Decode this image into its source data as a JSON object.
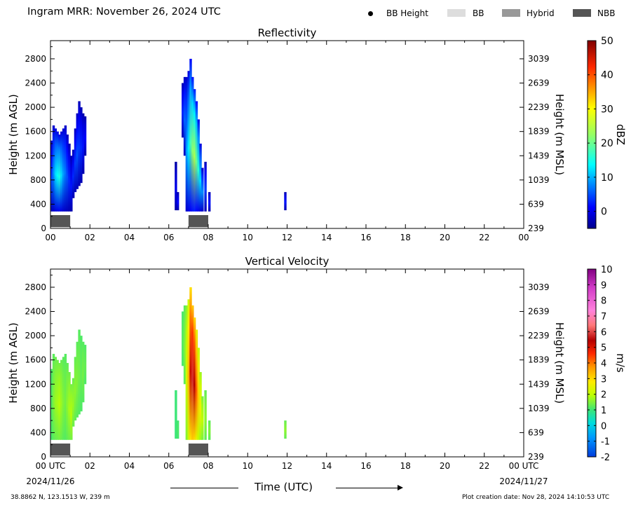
{
  "header": {
    "title": "Ingram MRR:  November 26, 2024 UTC",
    "legend": [
      {
        "label": "BB Height",
        "kind": "dot",
        "color": "#000000"
      },
      {
        "label": "BB",
        "kind": "box",
        "color": "#dddddd"
      },
      {
        "label": "Hybrid",
        "kind": "box",
        "color": "#999999"
      },
      {
        "label": "NBB",
        "kind": "box",
        "color": "#555555"
      }
    ]
  },
  "footer": {
    "location": "38.8862 N, 123.1513 W, 239 m",
    "creation": "Plot creation date: Nov 28, 2024 14:10:53 UTC",
    "xlabel": "Time (UTC)"
  },
  "chart_data": [
    {
      "type": "heatmap",
      "title": "Reflectivity",
      "ylabel": "Height (m AGL)",
      "y2label": "Height (m MSL)",
      "x_ticks": [
        "00",
        "02",
        "04",
        "06",
        "08",
        "10",
        "12",
        "14",
        "16",
        "18",
        "20",
        "22",
        "00"
      ],
      "y_ticks": [
        0,
        400,
        800,
        1200,
        1600,
        2000,
        2400,
        2800
      ],
      "y2_ticks": [
        239,
        639,
        1039,
        1439,
        1839,
        2239,
        2639,
        3039
      ],
      "xlim": [
        0,
        24
      ],
      "ylim": [
        0,
        3100
      ],
      "colorbar": {
        "label": "dBZ",
        "range": [
          -5,
          50
        ],
        "ticks": [
          0,
          10,
          20,
          30,
          40,
          50
        ]
      },
      "nbb_segments": [
        [
          0.0,
          1.0
        ],
        [
          7.0,
          8.0
        ]
      ],
      "columns": [
        {
          "x": 0.05,
          "bottom": 280,
          "top": 1450,
          "v": 5
        },
        {
          "x": 0.15,
          "bottom": 280,
          "top": 1700,
          "v": 8
        },
        {
          "x": 0.25,
          "bottom": 280,
          "top": 1650,
          "v": 12
        },
        {
          "x": 0.35,
          "bottom": 280,
          "top": 1600,
          "v": 14
        },
        {
          "x": 0.45,
          "bottom": 280,
          "top": 1550,
          "v": 15
        },
        {
          "x": 0.55,
          "bottom": 280,
          "top": 1600,
          "v": 12
        },
        {
          "x": 0.65,
          "bottom": 280,
          "top": 1650,
          "v": 9
        },
        {
          "x": 0.75,
          "bottom": 280,
          "top": 1700,
          "v": 7
        },
        {
          "x": 0.85,
          "bottom": 280,
          "top": 1550,
          "v": 5
        },
        {
          "x": 0.95,
          "bottom": 280,
          "top": 1400,
          "v": 3
        },
        {
          "x": 1.05,
          "bottom": 280,
          "top": 1200,
          "v": 2
        },
        {
          "x": 1.15,
          "bottom": 500,
          "top": 1300,
          "v": 3
        },
        {
          "x": 1.25,
          "bottom": 600,
          "top": 1650,
          "v": 4
        },
        {
          "x": 1.35,
          "bottom": 650,
          "top": 1900,
          "v": 5
        },
        {
          "x": 1.45,
          "bottom": 700,
          "top": 2100,
          "v": 4
        },
        {
          "x": 1.55,
          "bottom": 750,
          "top": 2000,
          "v": 3
        },
        {
          "x": 1.65,
          "bottom": 900,
          "top": 1900,
          "v": 2
        },
        {
          "x": 1.75,
          "bottom": 1200,
          "top": 1850,
          "v": 1
        },
        {
          "x": 6.35,
          "bottom": 300,
          "top": 1100,
          "v": 0
        },
        {
          "x": 6.45,
          "bottom": 300,
          "top": 600,
          "v": 1
        },
        {
          "x": 6.7,
          "bottom": 1500,
          "top": 2400,
          "v": 3
        },
        {
          "x": 6.8,
          "bottom": 1200,
          "top": 2500,
          "v": 6
        },
        {
          "x": 6.9,
          "bottom": 280,
          "top": 2500,
          "v": 9
        },
        {
          "x": 7.0,
          "bottom": 280,
          "top": 2600,
          "v": 13
        },
        {
          "x": 7.1,
          "bottom": 280,
          "top": 2800,
          "v": 18
        },
        {
          "x": 7.2,
          "bottom": 280,
          "top": 2500,
          "v": 22
        },
        {
          "x": 7.3,
          "bottom": 280,
          "top": 2300,
          "v": 24
        },
        {
          "x": 7.4,
          "bottom": 280,
          "top": 2100,
          "v": 20
        },
        {
          "x": 7.5,
          "bottom": 280,
          "top": 1800,
          "v": 16
        },
        {
          "x": 7.6,
          "bottom": 280,
          "top": 1400,
          "v": 12
        },
        {
          "x": 7.7,
          "bottom": 280,
          "top": 1000,
          "v": 8
        },
        {
          "x": 7.85,
          "bottom": 280,
          "top": 1100,
          "v": 4
        },
        {
          "x": 8.05,
          "bottom": 280,
          "top": 600,
          "v": 2
        },
        {
          "x": 11.9,
          "bottom": 300,
          "top": 600,
          "v": 2
        }
      ]
    },
    {
      "type": "heatmap",
      "title": "Vertical Velocity",
      "ylabel": "Height (m AGL)",
      "y2label": "Height (m MSL)",
      "x_ticks": [
        "00 UTC",
        "02",
        "04",
        "06",
        "08",
        "10",
        "12",
        "14",
        "16",
        "18",
        "20",
        "22",
        "00 UTC"
      ],
      "x_dates": [
        "2024/11/26",
        "2024/11/27"
      ],
      "y_ticks": [
        0,
        400,
        800,
        1200,
        1600,
        2000,
        2400,
        2800
      ],
      "y2_ticks": [
        239,
        639,
        1039,
        1439,
        1839,
        2239,
        2639,
        3039
      ],
      "xlim": [
        0,
        24
      ],
      "ylim": [
        0,
        3100
      ],
      "colorbar": {
        "label": "m/s",
        "range": [
          -2,
          10
        ],
        "ticks": [
          -2,
          -1,
          0,
          1,
          2,
          3,
          4,
          5,
          6,
          7,
          8,
          9,
          10
        ]
      },
      "nbb_segments": [
        [
          0.0,
          1.0
        ],
        [
          7.0,
          8.0
        ]
      ],
      "columns": [
        {
          "x": 0.05,
          "bottom": 280,
          "top": 1450,
          "v": 1.2
        },
        {
          "x": 0.15,
          "bottom": 280,
          "top": 1700,
          "v": 1.5
        },
        {
          "x": 0.25,
          "bottom": 280,
          "top": 1650,
          "v": 1.7
        },
        {
          "x": 0.35,
          "bottom": 280,
          "top": 1600,
          "v": 1.8
        },
        {
          "x": 0.45,
          "bottom": 280,
          "top": 1550,
          "v": 1.9
        },
        {
          "x": 0.55,
          "bottom": 280,
          "top": 1600,
          "v": 1.7
        },
        {
          "x": 0.65,
          "bottom": 280,
          "top": 1650,
          "v": 1.5
        },
        {
          "x": 0.75,
          "bottom": 280,
          "top": 1700,
          "v": 1.4
        },
        {
          "x": 0.85,
          "bottom": 280,
          "top": 1550,
          "v": 1.6
        },
        {
          "x": 0.95,
          "bottom": 280,
          "top": 1400,
          "v": 1.8
        },
        {
          "x": 1.05,
          "bottom": 280,
          "top": 1200,
          "v": 1.9
        },
        {
          "x": 1.15,
          "bottom": 500,
          "top": 1300,
          "v": 1.7
        },
        {
          "x": 1.25,
          "bottom": 600,
          "top": 1650,
          "v": 1.6
        },
        {
          "x": 1.35,
          "bottom": 650,
          "top": 1900,
          "v": 1.5
        },
        {
          "x": 1.45,
          "bottom": 700,
          "top": 2100,
          "v": 1.4
        },
        {
          "x": 1.55,
          "bottom": 750,
          "top": 2000,
          "v": 1.3
        },
        {
          "x": 1.65,
          "bottom": 900,
          "top": 1900,
          "v": 1.4
        },
        {
          "x": 1.75,
          "bottom": 1200,
          "top": 1850,
          "v": 1.3
        },
        {
          "x": 6.35,
          "bottom": 300,
          "top": 1100,
          "v": 1.0
        },
        {
          "x": 6.45,
          "bottom": 300,
          "top": 600,
          "v": 1.1
        },
        {
          "x": 6.7,
          "bottom": 1500,
          "top": 2400,
          "v": 1.2
        },
        {
          "x": 6.8,
          "bottom": 1200,
          "top": 2500,
          "v": 1.5
        },
        {
          "x": 6.9,
          "bottom": 280,
          "top": 2500,
          "v": 2.2
        },
        {
          "x": 7.0,
          "bottom": 280,
          "top": 2600,
          "v": 3.5
        },
        {
          "x": 7.1,
          "bottom": 280,
          "top": 2800,
          "v": 5.2
        },
        {
          "x": 7.2,
          "bottom": 280,
          "top": 2500,
          "v": 5.8
        },
        {
          "x": 7.3,
          "bottom": 280,
          "top": 2300,
          "v": 5.4
        },
        {
          "x": 7.4,
          "bottom": 280,
          "top": 2100,
          "v": 4.2
        },
        {
          "x": 7.5,
          "bottom": 280,
          "top": 1800,
          "v": 3.2
        },
        {
          "x": 7.6,
          "bottom": 280,
          "top": 1400,
          "v": 2.6
        },
        {
          "x": 7.7,
          "bottom": 280,
          "top": 1000,
          "v": 2.0
        },
        {
          "x": 7.85,
          "bottom": 280,
          "top": 1100,
          "v": 1.6
        },
        {
          "x": 8.05,
          "bottom": 280,
          "top": 600,
          "v": 1.5
        },
        {
          "x": 11.9,
          "bottom": 300,
          "top": 600,
          "v": 1.6
        }
      ]
    }
  ]
}
